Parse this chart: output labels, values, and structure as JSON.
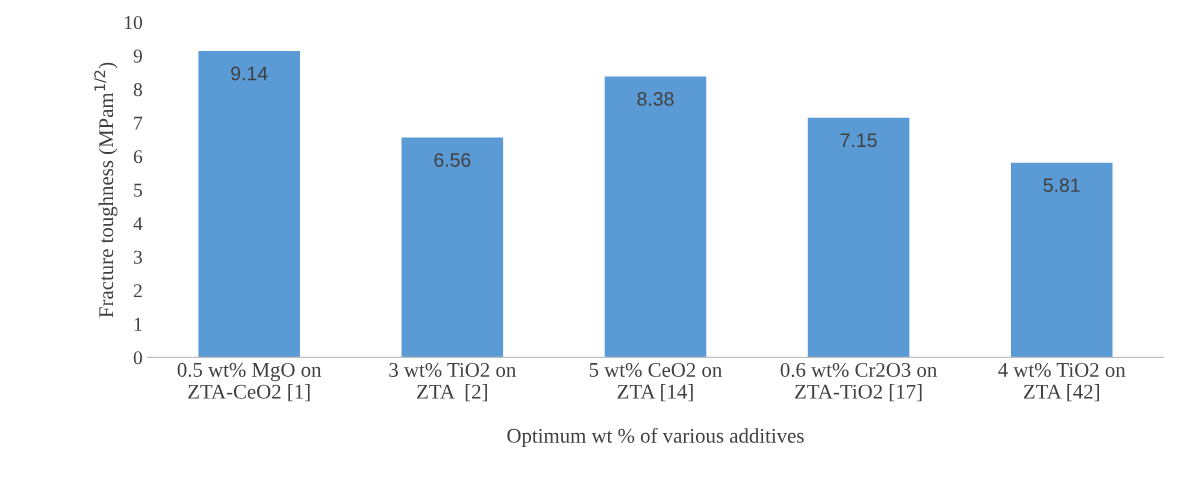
{
  "chart_data": {
    "type": "bar",
    "xlabel": "Optimum wt % of various additives",
    "ylabel": "Fracture toughness (MPam$^{1/2}$)",
    "categories": [
      "0.5 wt% MgO on\nZTA-CeO2 [1]",
      "3 wt% TiO2 on\nZTA  [2]",
      "5 wt% CeO2 on\nZTA [14]",
      "0.6 wt% Cr2O3 on\nZTA-TiO2 [17]",
      "4 wt% TiO2 on\nZTA [42]"
    ],
    "values": [
      9.14,
      6.56,
      8.38,
      7.15,
      5.81
    ],
    "color": "#5b9bd5",
    "ylim": [
      0,
      10
    ],
    "yticks": [
      0,
      1,
      2,
      3,
      4,
      5,
      6,
      7,
      8,
      9,
      10
    ],
    "grid": false,
    "data_labels": true
  }
}
